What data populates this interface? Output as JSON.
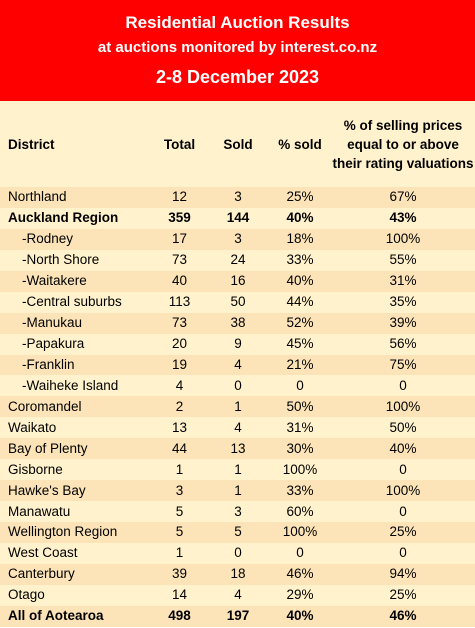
{
  "header": {
    "title": "Residential Auction Results",
    "subtitle": "at auctions monitored by interest.co.nz",
    "dates": "2-8 December 2023"
  },
  "columns": {
    "district": "District",
    "total": "Total",
    "sold": "Sold",
    "pct_sold": "% sold",
    "pct_valuation": "% of selling prices equal to or above their rating valuations"
  },
  "rows": [
    {
      "district": "Northland",
      "total": "12",
      "sold": "3",
      "pct_sold": "25%",
      "pct_val": "67%",
      "bold": false,
      "sub": false
    },
    {
      "district": "Auckland Region",
      "total": "359",
      "sold": "144",
      "pct_sold": "40%",
      "pct_val": "43%",
      "bold": true,
      "sub": false
    },
    {
      "district": "-Rodney",
      "total": "17",
      "sold": "3",
      "pct_sold": "18%",
      "pct_val": "100%",
      "bold": false,
      "sub": true
    },
    {
      "district": "-North Shore",
      "total": "73",
      "sold": "24",
      "pct_sold": "33%",
      "pct_val": "55%",
      "bold": false,
      "sub": true
    },
    {
      "district": "-Waitakere",
      "total": "40",
      "sold": "16",
      "pct_sold": "40%",
      "pct_val": "31%",
      "bold": false,
      "sub": true
    },
    {
      "district": "-Central suburbs",
      "total": "113",
      "sold": "50",
      "pct_sold": "44%",
      "pct_val": "35%",
      "bold": false,
      "sub": true
    },
    {
      "district": "-Manukau",
      "total": "73",
      "sold": "38",
      "pct_sold": "52%",
      "pct_val": "39%",
      "bold": false,
      "sub": true
    },
    {
      "district": "-Papakura",
      "total": "20",
      "sold": "9",
      "pct_sold": "45%",
      "pct_val": "56%",
      "bold": false,
      "sub": true
    },
    {
      "district": "-Franklin",
      "total": "19",
      "sold": "4",
      "pct_sold": "21%",
      "pct_val": "75%",
      "bold": false,
      "sub": true
    },
    {
      "district": "-Waiheke Island",
      "total": "4",
      "sold": "0",
      "pct_sold": "0",
      "pct_val": "0",
      "bold": false,
      "sub": true
    },
    {
      "district": "Coromandel",
      "total": "2",
      "sold": "1",
      "pct_sold": "50%",
      "pct_val": "100%",
      "bold": false,
      "sub": false
    },
    {
      "district": "Waikato",
      "total": "13",
      "sold": "4",
      "pct_sold": "31%",
      "pct_val": "50%",
      "bold": false,
      "sub": false
    },
    {
      "district": "Bay of Plenty",
      "total": "44",
      "sold": "13",
      "pct_sold": "30%",
      "pct_val": "40%",
      "bold": false,
      "sub": false
    },
    {
      "district": "Gisborne",
      "total": "1",
      "sold": "1",
      "pct_sold": "100%",
      "pct_val": "0",
      "bold": false,
      "sub": false
    },
    {
      "district": "Hawke's Bay",
      "total": "3",
      "sold": "1",
      "pct_sold": "33%",
      "pct_val": "100%",
      "bold": false,
      "sub": false
    },
    {
      "district": "Manawatu",
      "total": "5",
      "sold": "3",
      "pct_sold": "60%",
      "pct_val": "0",
      "bold": false,
      "sub": false
    },
    {
      "district": "Wellington Region",
      "total": "5",
      "sold": "5",
      "pct_sold": "100%",
      "pct_val": "25%",
      "bold": false,
      "sub": false
    },
    {
      "district": "West Coast",
      "total": "1",
      "sold": "0",
      "pct_sold": "0",
      "pct_val": "0",
      "bold": false,
      "sub": false
    },
    {
      "district": "Canterbury",
      "total": "39",
      "sold": "18",
      "pct_sold": "46%",
      "pct_val": "94%",
      "bold": false,
      "sub": false
    },
    {
      "district": "Otago",
      "total": "14",
      "sold": "4",
      "pct_sold": "29%",
      "pct_val": "25%",
      "bold": false,
      "sub": false
    },
    {
      "district": "All of Aotearoa",
      "total": "498",
      "sold": "197",
      "pct_sold": "40%",
      "pct_val": "46%",
      "bold": true,
      "sub": false
    }
  ]
}
